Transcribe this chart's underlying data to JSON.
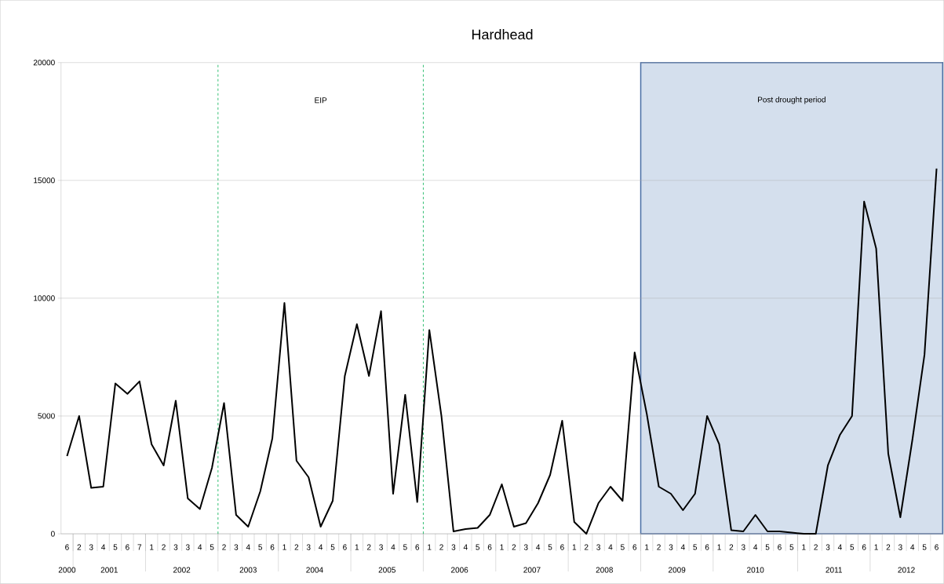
{
  "chart_data": {
    "type": "line",
    "title": "Hardhead",
    "categories": [
      "6",
      "2",
      "3",
      "4",
      "5",
      "6",
      "7",
      "1",
      "2",
      "3",
      "3",
      "4",
      "5",
      "2",
      "3",
      "4",
      "5",
      "6",
      "1",
      "2",
      "3",
      "4",
      "5",
      "6",
      "1",
      "2",
      "3",
      "4",
      "5",
      "6",
      "1",
      "2",
      "3",
      "4",
      "5",
      "6",
      "1",
      "2",
      "3",
      "4",
      "5",
      "6",
      "1",
      "2",
      "3",
      "4",
      "5",
      "6",
      "1",
      "2",
      "3",
      "4",
      "5",
      "6",
      "1",
      "2",
      "3",
      "4",
      "5",
      "6",
      "5",
      "1",
      "2",
      "3",
      "4",
      "5",
      "6",
      "1",
      "2",
      "3",
      "4",
      "5",
      "6"
    ],
    "series": [
      {
        "color": "#000000",
        "values": [
          3300,
          5000,
          1950,
          2000,
          6380,
          5940,
          6470,
          3800,
          2900,
          5650,
          1500,
          1050,
          2800,
          5550,
          800,
          300,
          1800,
          4050,
          9800,
          3100,
          2400,
          300,
          1400,
          6700,
          8900,
          6700,
          9450,
          1700,
          5900,
          1350,
          8650,
          5000,
          100,
          200,
          250,
          800,
          2100,
          300,
          450,
          1300,
          2500,
          4800,
          500,
          0,
          1300,
          2000,
          1400,
          7700,
          5100,
          2000,
          1700,
          1000,
          1700,
          5000,
          3800,
          150,
          100,
          800,
          100,
          100,
          50,
          0,
          0,
          2900,
          4200,
          5000,
          14100,
          12100,
          3400,
          700,
          4000,
          7600,
          15500
        ]
      }
    ],
    "ylim": [
      0,
      20000
    ],
    "yticks": [
      0,
      5000,
      10000,
      15000,
      20000
    ],
    "annotations": [
      "EIP",
      "Post drought period",
      "2000",
      "2001",
      "2002",
      "2003",
      "2004",
      "2005",
      "2006",
      "2007",
      "2008",
      "2009",
      "2010",
      "2011",
      "2012"
    ],
    "grid": "y",
    "marker": "none",
    "line_style": "solid"
  }
}
